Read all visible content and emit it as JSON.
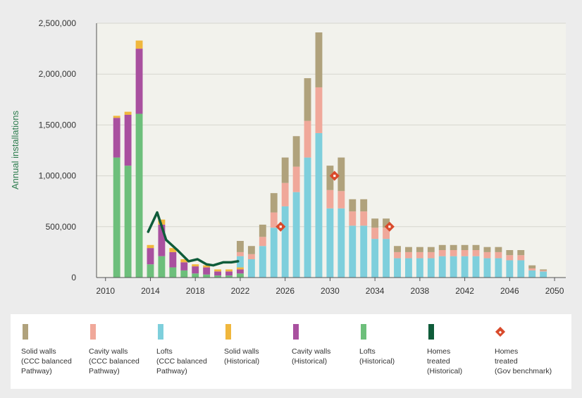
{
  "chart_data": {
    "type": "bar",
    "ylabel": "Annual installations",
    "xlabel": "",
    "ylim": [
      0,
      2500000
    ],
    "xlim": [
      2009.2,
      2051
    ],
    "x_ticks": [
      "2010",
      "2014",
      "2018",
      "2022",
      "2026",
      "2030",
      "2034",
      "2038",
      "2042",
      "2046",
      "2050"
    ],
    "y_ticks": [
      "0",
      "500,000",
      "1,000,000",
      "1,500,000",
      "2,000,000",
      "2,500,000"
    ],
    "grid": true,
    "years": [
      2011,
      2012,
      2013,
      2014,
      2015,
      2016,
      2017,
      2018,
      2019,
      2020,
      2021,
      2022,
      2023,
      2024,
      2025,
      2026,
      2027,
      2028,
      2029,
      2030,
      2031,
      2032,
      2033,
      2034,
      2035,
      2036,
      2037,
      2038,
      2039,
      2040,
      2041,
      2042,
      2043,
      2044,
      2045,
      2046,
      2047,
      2048,
      2049
    ],
    "series": [
      {
        "name": "Lofts (Historical)",
        "color": "#6dbf7b",
        "group": "historical",
        "values": [
          1180000,
          1100000,
          1610000,
          130000,
          210000,
          100000,
          70000,
          40000,
          30000,
          20000,
          20000,
          40000,
          0,
          0,
          0,
          0,
          0,
          0,
          0,
          0,
          0,
          0,
          0,
          0,
          0,
          0,
          0,
          0,
          0,
          0,
          0,
          0,
          0,
          0,
          0,
          0,
          0,
          0,
          0
        ]
      },
      {
        "name": "Cavity walls (Historical)",
        "color": "#a9509f",
        "group": "historical",
        "values": [
          390000,
          500000,
          640000,
          160000,
          310000,
          150000,
          80000,
          70000,
          70000,
          40000,
          40000,
          40000,
          0,
          0,
          0,
          0,
          0,
          0,
          0,
          0,
          0,
          0,
          0,
          0,
          0,
          0,
          0,
          0,
          0,
          0,
          0,
          0,
          0,
          0,
          0,
          0,
          0,
          0,
          0
        ]
      },
      {
        "name": "Solid walls (Historical)",
        "color": "#f0b73d",
        "group": "historical",
        "values": [
          20000,
          30000,
          80000,
          30000,
          50000,
          40000,
          30000,
          20000,
          20000,
          20000,
          20000,
          20000,
          0,
          0,
          0,
          0,
          0,
          0,
          0,
          0,
          0,
          0,
          0,
          0,
          0,
          0,
          0,
          0,
          0,
          0,
          0,
          0,
          0,
          0,
          0,
          0,
          0,
          0,
          0
        ]
      },
      {
        "name": "Lofts (CCC balanced Pathway)",
        "color": "#7ecfdc",
        "group": "pathway",
        "values": [
          0,
          0,
          0,
          0,
          0,
          0,
          0,
          0,
          0,
          0,
          0,
          110000,
          180000,
          310000,
          490000,
          700000,
          840000,
          1180000,
          1420000,
          680000,
          680000,
          510000,
          510000,
          380000,
          380000,
          190000,
          190000,
          190000,
          190000,
          210000,
          210000,
          210000,
          210000,
          190000,
          190000,
          170000,
          170000,
          70000,
          60000
        ]
      },
      {
        "name": "Cavity walls (CCC balanced Pathway)",
        "color": "#f0a89a",
        "group": "pathway",
        "values": [
          0,
          0,
          0,
          0,
          0,
          0,
          0,
          0,
          0,
          0,
          0,
          40000,
          50000,
          90000,
          150000,
          230000,
          250000,
          360000,
          450000,
          180000,
          170000,
          140000,
          140000,
          110000,
          110000,
          60000,
          60000,
          60000,
          60000,
          60000,
          60000,
          60000,
          60000,
          60000,
          60000,
          50000,
          50000,
          20000,
          10000
        ]
      },
      {
        "name": "Solid walls (CCC balanced Pathway)",
        "color": "#b0a27c",
        "group": "pathway",
        "values": [
          0,
          0,
          0,
          0,
          0,
          0,
          0,
          0,
          0,
          0,
          0,
          110000,
          80000,
          120000,
          190000,
          250000,
          300000,
          420000,
          540000,
          240000,
          330000,
          120000,
          120000,
          90000,
          90000,
          60000,
          50000,
          50000,
          50000,
          50000,
          50000,
          50000,
          50000,
          50000,
          50000,
          50000,
          50000,
          30000,
          10000
        ]
      }
    ],
    "lines": [
      {
        "name": "Homes treated (Historical)",
        "color": "#0f5c3a",
        "x": [
          2013.8,
          2014.6,
          2015.4,
          2016.4,
          2017.4,
          2018.2,
          2019.0,
          2019.6,
          2020.5,
          2021.2,
          2021.8
        ],
        "y": [
          450000,
          640000,
          370000,
          270000,
          160000,
          180000,
          130000,
          120000,
          150000,
          150000,
          160000
        ]
      }
    ],
    "markers": [
      {
        "name": "Homes treated (Gov benchmark)",
        "color": "#d94a2b",
        "points": [
          {
            "x": 2025.6,
            "y": 500000
          },
          {
            "x": 2030.4,
            "y": 1000000
          },
          {
            "x": 2035.3,
            "y": 500000
          }
        ]
      }
    ],
    "legend_position": "bottom"
  },
  "legend": [
    {
      "key": "solid-walls-ccc",
      "kind": "bar",
      "color": "#b0a27c",
      "label": "Solid walls\n(CCC balanced\nPathway)"
    },
    {
      "key": "cavity-walls-ccc",
      "kind": "bar",
      "color": "#f0a89a",
      "label": "Cavity walls\n(CCC balanced\nPathway)"
    },
    {
      "key": "lofts-ccc",
      "kind": "bar",
      "color": "#7ecfdc",
      "label": "Lofts\n(CCC balanced\nPathway)"
    },
    {
      "key": "solid-walls-historical",
      "kind": "bar",
      "color": "#f0b73d",
      "label": "Solid walls\n(Historical)"
    },
    {
      "key": "cavity-walls-historical",
      "kind": "bar",
      "color": "#a9509f",
      "label": "Cavity walls\n(Historical)"
    },
    {
      "key": "lofts-historical",
      "kind": "bar",
      "color": "#6dbf7b",
      "label": "Lofts\n(Historical)"
    },
    {
      "key": "homes-treated-historical",
      "kind": "line",
      "color": "#0f5c3a",
      "label": "Homes\ntreated\n(Historical)"
    },
    {
      "key": "homes-treated-benchmark",
      "kind": "diamond",
      "color": "#d94a2b",
      "label": "Homes\ntreated\n(Gov benchmark)"
    }
  ]
}
